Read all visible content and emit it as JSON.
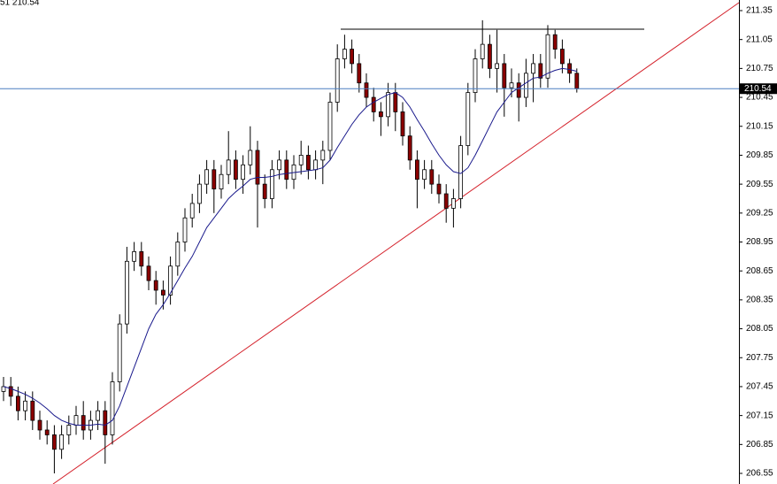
{
  "header": "51 210.54",
  "chart_data": {
    "type": "candlestick",
    "ylim": [
      206.44,
      211.46
    ],
    "yticks": [
      211.35,
      211.05,
      210.75,
      210.45,
      210.15,
      209.85,
      209.55,
      209.25,
      208.95,
      208.65,
      208.35,
      208.05,
      207.75,
      207.45,
      207.15,
      206.85,
      206.55
    ],
    "current_price": 210.54,
    "current_price_color": "#4a7fc1",
    "bull_color": "#ffffff",
    "bear_color": "#8b0000",
    "ma_color": "#1a1a8c",
    "open": [
      207.4,
      207.45,
      207.35,
      207.2,
      207.3,
      207.1,
      207.0,
      206.95,
      206.8,
      206.95,
      207.05,
      207.15,
      207.0,
      207.1,
      207.2,
      206.95,
      207.5,
      208.1,
      208.75,
      208.85,
      208.7,
      208.55,
      208.45,
      208.4,
      208.7,
      208.95,
      209.2,
      209.35,
      209.55,
      209.7,
      209.5,
      209.65,
      209.8,
      209.6,
      209.75,
      209.9,
      209.55,
      209.4,
      209.7,
      209.8,
      209.6,
      209.75,
      209.85,
      209.7,
      209.8,
      209.9,
      210.4,
      210.85,
      210.95,
      210.8,
      210.6,
      210.45,
      210.3,
      210.25,
      210.5,
      210.3,
      210.05,
      209.8,
      209.6,
      209.7,
      209.55,
      209.45,
      209.3,
      209.4,
      209.95,
      210.5,
      210.85,
      211.0,
      210.75,
      210.8,
      210.55,
      210.6,
      210.45,
      210.7,
      210.8,
      210.65,
      211.1,
      210.95,
      210.8,
      210.7
    ],
    "high": [
      207.55,
      207.55,
      207.45,
      207.4,
      207.4,
      207.2,
      207.1,
      207.05,
      207.05,
      207.15,
      207.25,
      207.3,
      207.2,
      207.3,
      207.3,
      207.6,
      208.2,
      208.9,
      208.95,
      208.95,
      208.8,
      208.65,
      208.55,
      208.8,
      209.05,
      209.3,
      209.45,
      209.65,
      209.8,
      209.8,
      209.75,
      210.1,
      209.9,
      209.85,
      210.15,
      210.0,
      209.65,
      209.8,
      209.9,
      209.9,
      209.85,
      210.0,
      209.95,
      209.9,
      210.0,
      210.5,
      211.0,
      211.1,
      211.05,
      210.9,
      210.7,
      210.55,
      210.4,
      210.6,
      210.6,
      210.4,
      210.15,
      209.9,
      209.8,
      209.8,
      209.65,
      209.55,
      209.5,
      210.05,
      210.6,
      210.95,
      211.25,
      211.1,
      211.15,
      210.9,
      210.75,
      210.7,
      210.85,
      210.9,
      210.9,
      211.2,
      211.15,
      211.05,
      210.85,
      210.75
    ],
    "low": [
      207.3,
      207.25,
      207.1,
      207.1,
      207.0,
      206.9,
      206.85,
      206.55,
      206.7,
      206.85,
      206.95,
      206.9,
      206.9,
      207.0,
      206.65,
      206.85,
      207.4,
      208.0,
      208.65,
      208.6,
      208.45,
      208.3,
      208.25,
      208.3,
      208.6,
      208.85,
      209.1,
      209.25,
      209.45,
      209.25,
      209.4,
      209.55,
      209.5,
      209.45,
      209.65,
      209.1,
      209.3,
      209.3,
      209.6,
      209.5,
      209.5,
      209.65,
      209.6,
      209.6,
      209.55,
      209.8,
      210.3,
      210.75,
      210.7,
      210.5,
      210.35,
      210.2,
      210.05,
      210.15,
      210.1,
      209.95,
      209.7,
      209.3,
      209.5,
      209.45,
      209.35,
      209.15,
      209.1,
      209.3,
      209.85,
      210.4,
      210.75,
      210.65,
      210.5,
      210.25,
      210.45,
      210.2,
      210.35,
      210.4,
      210.55,
      210.55,
      210.85,
      210.7,
      210.6,
      210.5
    ],
    "close": [
      207.45,
      207.35,
      207.2,
      207.3,
      207.1,
      207.0,
      206.95,
      206.8,
      206.95,
      207.05,
      207.15,
      207.0,
      207.1,
      207.2,
      206.95,
      207.5,
      208.1,
      208.75,
      208.85,
      208.7,
      208.55,
      208.45,
      208.4,
      208.7,
      208.95,
      209.2,
      209.35,
      209.55,
      209.7,
      209.5,
      209.65,
      209.8,
      209.6,
      209.75,
      209.9,
      209.55,
      209.4,
      209.7,
      209.8,
      209.6,
      209.75,
      209.85,
      209.7,
      209.8,
      209.9,
      210.4,
      210.85,
      210.95,
      210.8,
      210.6,
      210.45,
      210.3,
      210.25,
      210.5,
      210.3,
      210.05,
      209.8,
      209.6,
      209.7,
      209.55,
      209.45,
      209.3,
      209.4,
      209.95,
      210.5,
      210.85,
      211.0,
      210.75,
      210.8,
      210.55,
      210.6,
      210.45,
      210.7,
      210.8,
      210.65,
      211.1,
      210.95,
      210.8,
      210.7,
      210.54
    ],
    "ma": [
      207.45,
      207.43,
      207.4,
      207.37,
      207.33,
      207.28,
      207.22,
      207.15,
      207.1,
      207.07,
      207.05,
      207.05,
      207.05,
      207.06,
      207.05,
      207.1,
      207.25,
      207.45,
      207.65,
      207.85,
      208.05,
      208.2,
      208.3,
      208.42,
      208.55,
      208.68,
      208.8,
      208.95,
      209.1,
      209.2,
      209.3,
      209.4,
      209.47,
      209.53,
      209.6,
      209.62,
      209.62,
      209.63,
      209.65,
      209.66,
      209.67,
      209.68,
      209.69,
      209.7,
      209.72,
      209.8,
      209.93,
      210.05,
      210.17,
      210.27,
      210.35,
      210.4,
      210.44,
      210.48,
      210.5,
      210.45,
      210.35,
      210.22,
      210.1,
      209.97,
      209.85,
      209.75,
      209.68,
      209.66,
      209.72,
      209.85,
      210.0,
      210.15,
      210.3,
      210.4,
      210.5,
      210.55,
      210.6,
      210.65,
      210.66,
      210.7,
      210.73,
      210.75,
      210.74,
      210.72
    ]
  }
}
